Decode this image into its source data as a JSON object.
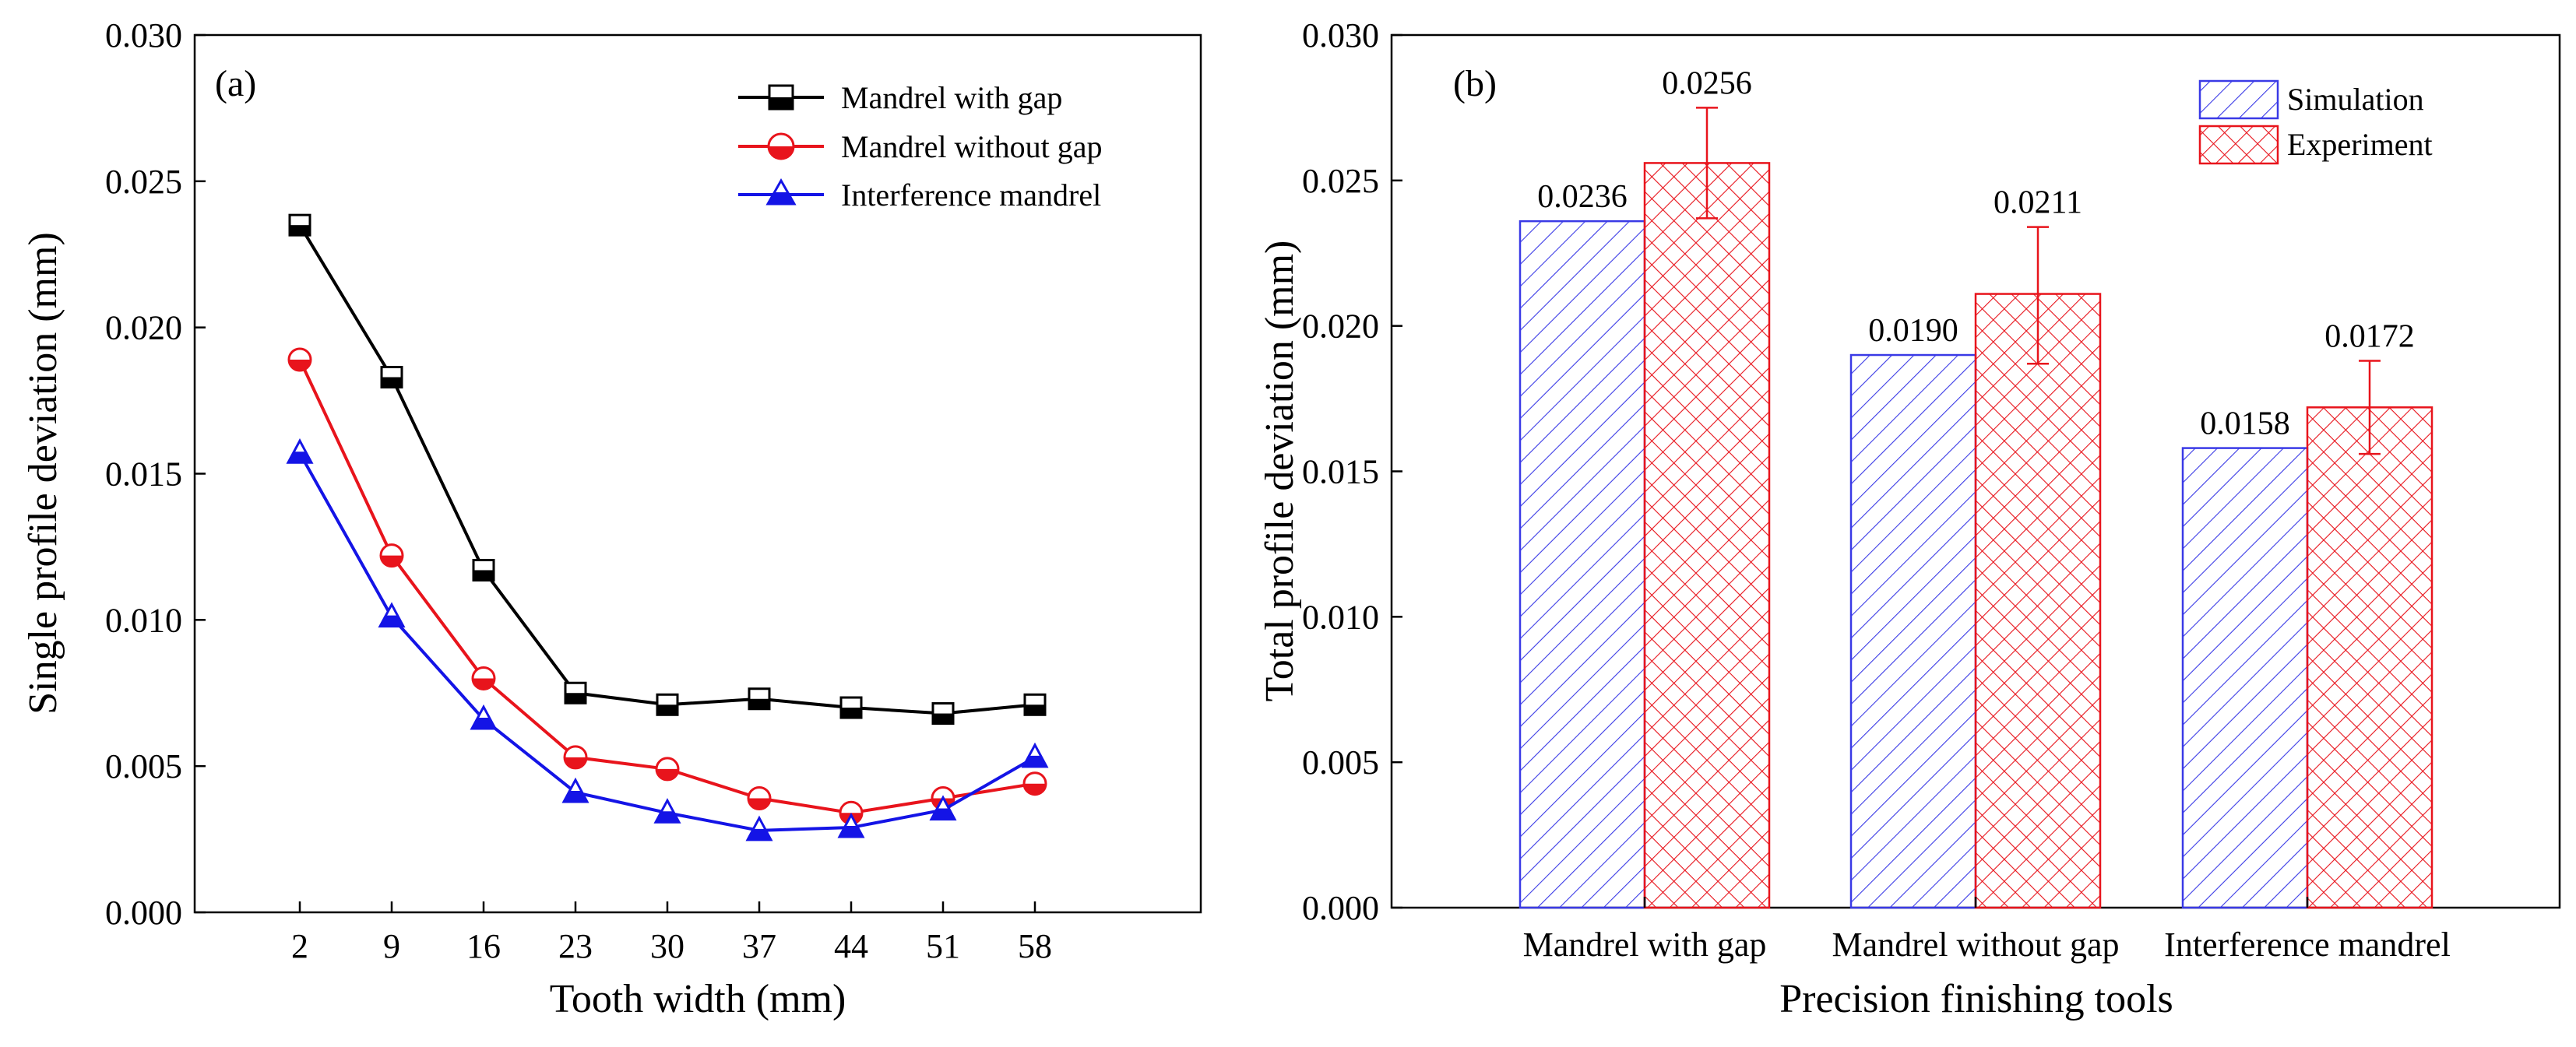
{
  "chart_data": [
    {
      "panel_label": "(a)",
      "type": "line",
      "xlabel": "Tooth width (mm)",
      "ylabel": "Single profile deviation (mm)",
      "x_tick_labels": [
        "2",
        "9",
        "16",
        "23",
        "30",
        "37",
        "44",
        "51",
        "58"
      ],
      "y_tick_labels": [
        "0.000",
        "0.005",
        "0.010",
        "0.015",
        "0.020",
        "0.025",
        "0.030"
      ],
      "ylim": [
        0,
        0.03
      ],
      "series": [
        {
          "name": "Mandrel with gap",
          "color": "#000000",
          "marker": "square",
          "values": [
            0.0235,
            0.0183,
            0.0117,
            0.0075,
            0.0071,
            0.0073,
            0.007,
            0.0068,
            0.0071
          ]
        },
        {
          "name": "Mandrel without gap",
          "color": "#e8141c",
          "marker": "circle",
          "values": [
            0.0189,
            0.0122,
            0.008,
            0.0053,
            0.0049,
            0.0039,
            0.0034,
            0.0039,
            0.0044
          ]
        },
        {
          "name": "Interference mandrel",
          "color": "#1414e6",
          "marker": "triangle",
          "values": [
            0.0157,
            0.0101,
            0.0066,
            0.0041,
            0.0034,
            0.0028,
            0.0029,
            0.0035,
            0.0053
          ]
        }
      ]
    },
    {
      "panel_label": "(b)",
      "type": "bar",
      "xlabel": "Precision finishing tools",
      "ylabel": "Total profile deviation (mm)",
      "categories": [
        "Mandrel with gap",
        "Mandrel without gap",
        "Interference mandrel"
      ],
      "y_tick_labels": [
        "0.000",
        "0.005",
        "0.010",
        "0.015",
        "0.020",
        "0.025",
        "0.030"
      ],
      "ylim": [
        0,
        0.03
      ],
      "series": [
        {
          "name": "Simulation",
          "color": "#3a3ae6",
          "hatch": "diagonal",
          "values": [
            0.0236,
            0.019,
            0.0158
          ],
          "value_labels": [
            "0.0236",
            "0.0190",
            "0.0158"
          ]
        },
        {
          "name": "Experiment",
          "color": "#e8141c",
          "hatch": "crosshatch",
          "values": [
            0.0256,
            0.0211,
            0.0172
          ],
          "value_labels": [
            "0.0256",
            "0.0211",
            "0.0172"
          ],
          "error_upper": [
            0.0275,
            0.0234,
            0.0188
          ],
          "error_lower": [
            0.0237,
            0.0187,
            0.0156
          ]
        }
      ]
    }
  ]
}
